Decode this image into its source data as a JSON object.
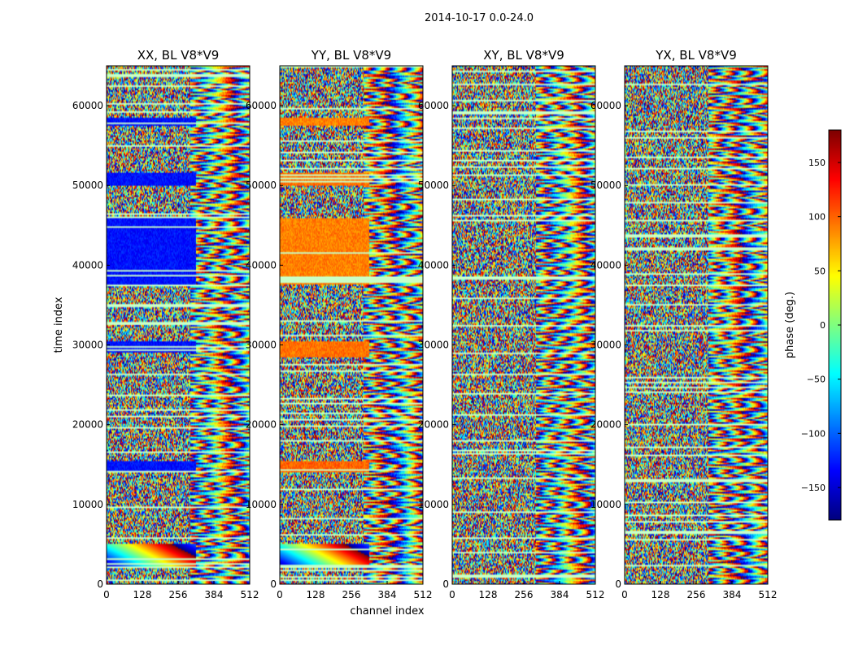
{
  "figure": {
    "suptitle": "2014-10-17 0.0-24.0",
    "shared_xlabel": "channel index",
    "shared_ylabel": "time index"
  },
  "colorbar": {
    "label": "phase (deg.)",
    "colormap": "jet",
    "range": [
      -180,
      180
    ],
    "ticks": [
      -150,
      -100,
      -50,
      0,
      50,
      100,
      150
    ],
    "tick_labels": [
      "−150",
      "−100",
      "−50",
      "0",
      "50",
      "100",
      "150"
    ]
  },
  "chart_data": [
    {
      "type": "heatmap",
      "title": "XX, BL V8*V9",
      "xlim": [
        0,
        512
      ],
      "ylim": [
        0,
        65000
      ],
      "xticks": [
        0,
        128,
        256,
        384,
        512
      ],
      "yticks": [
        0,
        10000,
        20000,
        30000,
        40000,
        50000,
        60000
      ],
      "zlim": [
        -180,
        180
      ],
      "coherent_blocks": [
        {
          "x": [
            0,
            320
          ],
          "y": [
            37500,
            46000
          ],
          "phase": -130
        },
        {
          "x": [
            0,
            320
          ],
          "y": [
            29000,
            30500
          ],
          "phase": -130
        },
        {
          "x": [
            0,
            320
          ],
          "y": [
            14000,
            15500
          ],
          "phase": -130
        },
        {
          "x": [
            0,
            320
          ],
          "y": [
            57500,
            58500
          ],
          "phase": -130
        },
        {
          "x": [
            0,
            320
          ],
          "y": [
            50000,
            51500
          ],
          "phase": -130
        },
        {
          "x": [
            0,
            320
          ],
          "y": [
            2000,
            5000
          ],
          "phase": 0
        }
      ]
    },
    {
      "type": "heatmap",
      "title": "YY, BL V8*V9",
      "xlim": [
        0,
        512
      ],
      "ylim": [
        0,
        65000
      ],
      "xticks": [
        0,
        128,
        256,
        384,
        512
      ],
      "yticks": [
        0,
        10000,
        20000,
        30000,
        40000,
        50000,
        60000
      ],
      "zlim": [
        -180,
        180
      ],
      "coherent_blocks": [
        {
          "x": [
            0,
            320
          ],
          "y": [
            37500,
            46000
          ],
          "phase": 90
        },
        {
          "x": [
            0,
            320
          ],
          "y": [
            28500,
            30500
          ],
          "phase": 95
        },
        {
          "x": [
            0,
            320
          ],
          "y": [
            14000,
            15500
          ],
          "phase": 100
        },
        {
          "x": [
            0,
            320
          ],
          "y": [
            57500,
            58500
          ],
          "phase": 90
        },
        {
          "x": [
            0,
            320
          ],
          "y": [
            50000,
            51500
          ],
          "phase": 95
        },
        {
          "x": [
            0,
            320
          ],
          "y": [
            2000,
            5000
          ],
          "phase": 0
        }
      ]
    },
    {
      "type": "heatmap",
      "title": "XY, BL V8*V9",
      "xlim": [
        0,
        512
      ],
      "ylim": [
        0,
        65000
      ],
      "xticks": [
        0,
        128,
        256,
        384,
        512
      ],
      "yticks": [
        0,
        10000,
        20000,
        30000,
        40000,
        50000,
        60000
      ],
      "zlim": [
        -180,
        180
      ],
      "coherent_blocks": []
    },
    {
      "type": "heatmap",
      "title": "YX, BL V8*V9",
      "xlim": [
        0,
        512
      ],
      "ylim": [
        0,
        65000
      ],
      "xticks": [
        0,
        128,
        256,
        384,
        512
      ],
      "yticks": [
        0,
        10000,
        20000,
        30000,
        40000,
        50000,
        60000
      ],
      "zlim": [
        -180,
        180
      ],
      "coherent_blocks": []
    }
  ]
}
